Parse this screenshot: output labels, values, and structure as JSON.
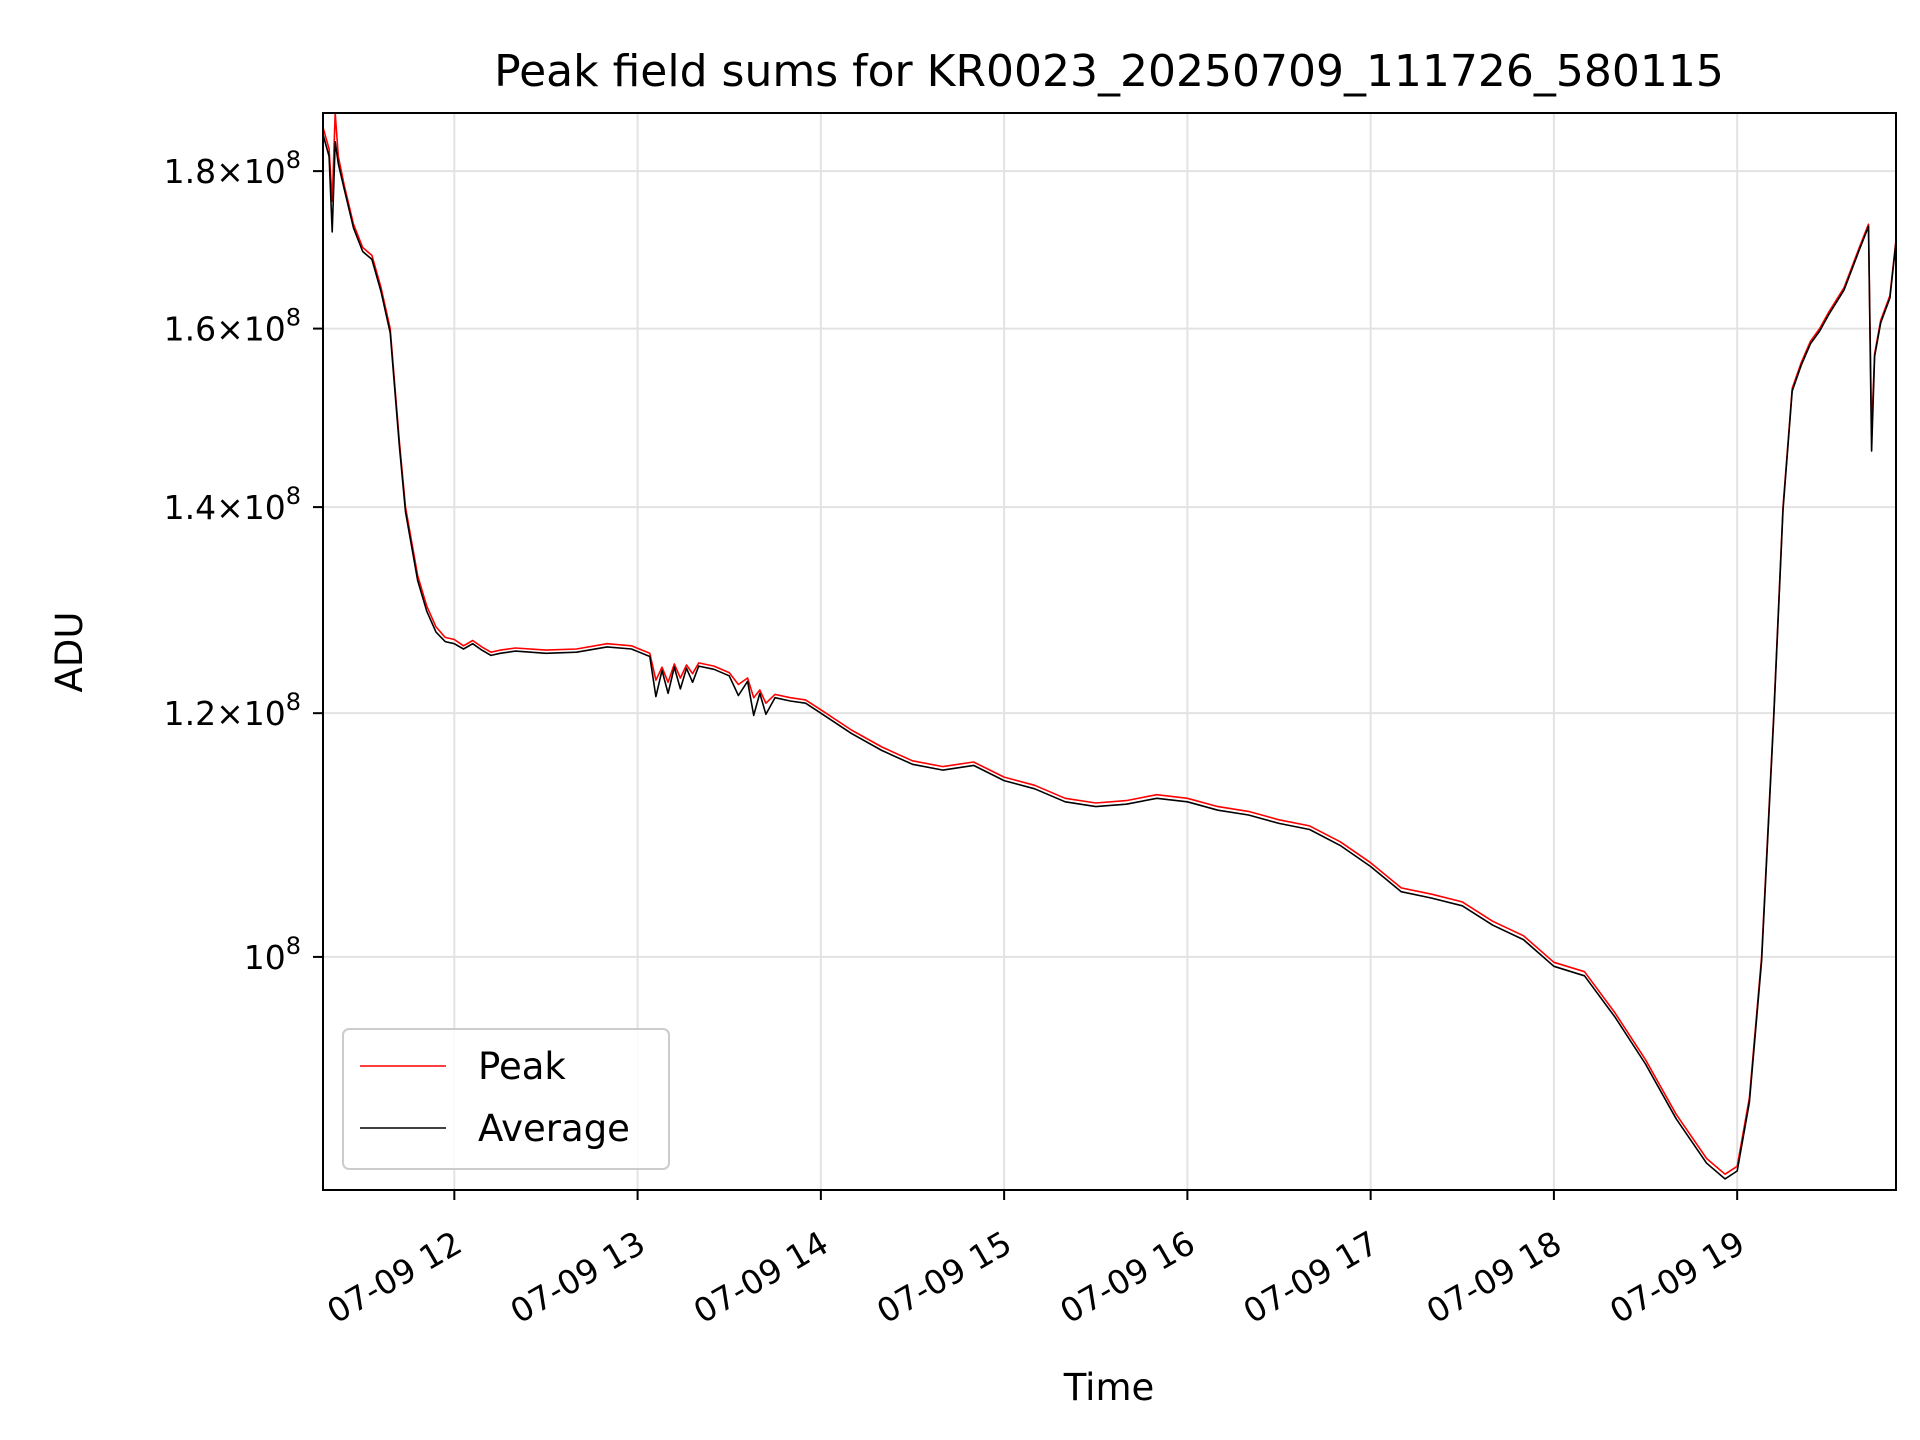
{
  "chart_data": {
    "type": "line",
    "title": "Peak field sums for KR0023_20250709_111726_580115",
    "xlabel": "Time",
    "ylabel": "ADU",
    "y_scale": "log",
    "ylim": [
      84000000,
      188000000
    ],
    "xlim": [
      "2025-07-09 11:17",
      "2025-07-09 19:52"
    ],
    "grid": true,
    "legend_location": "lower left",
    "x_ticks": [
      {
        "value": "2025-07-09 12:00",
        "label": "07-09 12"
      },
      {
        "value": "2025-07-09 13:00",
        "label": "07-09 13"
      },
      {
        "value": "2025-07-09 14:00",
        "label": "07-09 14"
      },
      {
        "value": "2025-07-09 15:00",
        "label": "07-09 15"
      },
      {
        "value": "2025-07-09 16:00",
        "label": "07-09 16"
      },
      {
        "value": "2025-07-09 17:00",
        "label": "07-09 17"
      },
      {
        "value": "2025-07-09 18:00",
        "label": "07-09 18"
      },
      {
        "value": "2025-07-09 19:00",
        "label": "07-09 19"
      }
    ],
    "y_ticks": [
      {
        "value": 100000000,
        "mantissa": "",
        "exponent": "8"
      },
      {
        "value": 120000000,
        "mantissa": "1.2",
        "exponent": "8"
      },
      {
        "value": 140000000,
        "mantissa": "1.4",
        "exponent": "8"
      },
      {
        "value": 160000000,
        "mantissa": "1.6",
        "exponent": "8"
      },
      {
        "value": 180000000,
        "mantissa": "1.8",
        "exponent": "8"
      }
    ],
    "x": [
      "2025-07-09 11:17",
      "2025-07-09 11:19",
      "2025-07-09 11:20",
      "2025-07-09 11:21",
      "2025-07-09 11:22",
      "2025-07-09 11:24",
      "2025-07-09 11:27",
      "2025-07-09 11:30",
      "2025-07-09 11:33",
      "2025-07-09 11:36",
      "2025-07-09 11:39",
      "2025-07-09 11:42",
      "2025-07-09 11:44",
      "2025-07-09 11:48",
      "2025-07-09 11:51",
      "2025-07-09 11:54",
      "2025-07-09 11:57",
      "2025-07-09 12:00",
      "2025-07-09 12:03",
      "2025-07-09 12:06",
      "2025-07-09 12:09",
      "2025-07-09 12:12",
      "2025-07-09 12:15",
      "2025-07-09 12:20",
      "2025-07-09 12:30",
      "2025-07-09 12:40",
      "2025-07-09 12:50",
      "2025-07-09 12:58",
      "2025-07-09 13:04",
      "2025-07-09 13:06",
      "2025-07-09 13:08",
      "2025-07-09 13:10",
      "2025-07-09 13:12",
      "2025-07-09 13:14",
      "2025-07-09 13:16",
      "2025-07-09 13:18",
      "2025-07-09 13:20",
      "2025-07-09 13:25",
      "2025-07-09 13:30",
      "2025-07-09 13:33",
      "2025-07-09 13:36",
      "2025-07-09 13:38",
      "2025-07-09 13:40",
      "2025-07-09 13:42",
      "2025-07-09 13:45",
      "2025-07-09 13:50",
      "2025-07-09 13:55",
      "2025-07-09 14:00",
      "2025-07-09 14:10",
      "2025-07-09 14:20",
      "2025-07-09 14:30",
      "2025-07-09 14:40",
      "2025-07-09 14:50",
      "2025-07-09 15:00",
      "2025-07-09 15:10",
      "2025-07-09 15:20",
      "2025-07-09 15:30",
      "2025-07-09 15:40",
      "2025-07-09 15:50",
      "2025-07-09 16:00",
      "2025-07-09 16:10",
      "2025-07-09 16:20",
      "2025-07-09 16:30",
      "2025-07-09 16:40",
      "2025-07-09 16:50",
      "2025-07-09 17:00",
      "2025-07-09 17:10",
      "2025-07-09 17:20",
      "2025-07-09 17:30",
      "2025-07-09 17:40",
      "2025-07-09 17:50",
      "2025-07-09 18:00",
      "2025-07-09 18:10",
      "2025-07-09 18:20",
      "2025-07-09 18:30",
      "2025-07-09 18:40",
      "2025-07-09 18:50",
      "2025-07-09 18:56",
      "2025-07-09 19:00",
      "2025-07-09 19:04",
      "2025-07-09 19:08",
      "2025-07-09 19:12",
      "2025-07-09 19:15",
      "2025-07-09 19:18",
      "2025-07-09 19:21",
      "2025-07-09 19:24",
      "2025-07-09 19:27",
      "2025-07-09 19:30",
      "2025-07-09 19:35",
      "2025-07-09 19:40",
      "2025-07-09 19:43",
      "2025-07-09 19:44",
      "2025-07-09 19:45",
      "2025-07-09 19:47",
      "2025-07-09 19:50",
      "2025-07-09 19:52"
    ],
    "series": [
      {
        "name": "Peak",
        "color": "#ff0000",
        "values": [
          186000000,
          183000000,
          176000000,
          188000000,
          182000000,
          178000000,
          173000000,
          170000000,
          169000000,
          165000000,
          160000000,
          147000000,
          140000000,
          133000000,
          130000000,
          128000000,
          127000000,
          126800000,
          126200000,
          126700000,
          126100000,
          125600000,
          125800000,
          126000000,
          125800000,
          125900000,
          126400000,
          126200000,
          125500000,
          123000000,
          124200000,
          122800000,
          124500000,
          123200000,
          124400000,
          123600000,
          124600000,
          124300000,
          123700000,
          122600000,
          123200000,
          121400000,
          122100000,
          120900000,
          121700000,
          121400000,
          121200000,
          120300000,
          118500000,
          117000000,
          115800000,
          115300000,
          115700000,
          114400000,
          113700000,
          112600000,
          112200000,
          112400000,
          112900000,
          112600000,
          111900000,
          111500000,
          110800000,
          110300000,
          109000000,
          107300000,
          105300000,
          104800000,
          104200000,
          102700000,
          101600000,
          99600000,
          98900000,
          95900000,
          92600000,
          88900000,
          86000000,
          85000000,
          85500000,
          90000000,
          100000000,
          120000000,
          140000000,
          153000000,
          156000000,
          158500000,
          160000000,
          162000000,
          165000000,
          170000000,
          173000000,
          148000000,
          157000000,
          161000000,
          164000000,
          171000000
        ]
      },
      {
        "name": "Average",
        "color": "#000000",
        "values": [
          185000000,
          182000000,
          172000000,
          184000000,
          181000000,
          177500000,
          172500000,
          169500000,
          168500000,
          164500000,
          159500000,
          146500000,
          139500000,
          132500000,
          129500000,
          127500000,
          126600000,
          126400000,
          125900000,
          126400000,
          125800000,
          125300000,
          125500000,
          125700000,
          125500000,
          125600000,
          126100000,
          125900000,
          125200000,
          121500000,
          123900000,
          121800000,
          124200000,
          122200000,
          124100000,
          122800000,
          124300000,
          124000000,
          123400000,
          121600000,
          122900000,
          119800000,
          121800000,
          119900000,
          121400000,
          121100000,
          120900000,
          120000000,
          118200000,
          116700000,
          115500000,
          115000000,
          115400000,
          114100000,
          113400000,
          112300000,
          111900000,
          112100000,
          112600000,
          112300000,
          111600000,
          111200000,
          110500000,
          110000000,
          108700000,
          107000000,
          105000000,
          104500000,
          103900000,
          102400000,
          101300000,
          99300000,
          98600000,
          95600000,
          92300000,
          88600000,
          85700000,
          84700000,
          85200000,
          89700000,
          99700000,
          119700000,
          139700000,
          152700000,
          155700000,
          158200000,
          159700000,
          161700000,
          164700000,
          169700000,
          172700000,
          146000000,
          156700000,
          160700000,
          163700000,
          170700000
        ]
      }
    ]
  }
}
